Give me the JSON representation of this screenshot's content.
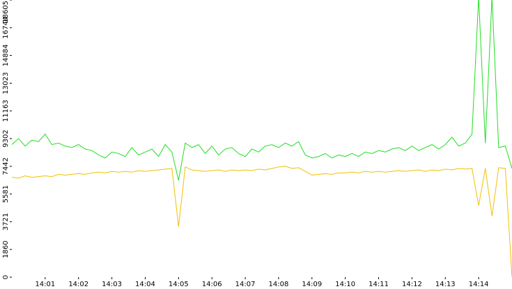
{
  "chart_data": {
    "type": "line",
    "x": [
      0,
      0.2,
      0.4,
      0.6,
      0.8,
      1,
      1.2,
      1.4,
      1.6,
      1.8,
      2,
      2.2,
      2.4,
      2.6,
      2.8,
      3,
      3.2,
      3.4,
      3.6,
      3.8,
      4,
      4.2,
      4.4,
      4.6,
      4.8,
      5,
      5.2,
      5.4,
      5.6,
      5.8,
      6,
      6.2,
      6.4,
      6.6,
      6.8,
      7,
      7.2,
      7.4,
      7.6,
      7.8,
      8,
      8.2,
      8.4,
      8.6,
      8.8,
      9,
      9.2,
      9.4,
      9.6,
      9.8,
      10,
      10.2,
      10.4,
      10.6,
      10.8,
      11,
      11.2,
      11.4,
      11.6,
      11.8,
      12,
      12.2,
      12.4,
      12.6,
      12.8,
      13,
      13.2,
      13.4,
      13.6,
      13.8,
      14,
      14.2,
      14.4,
      14.6,
      14.8,
      15
    ],
    "series": [
      {
        "color": "#22dd22",
        "values": [
          8900,
          9300,
          8800,
          9200,
          9100,
          9600,
          8900,
          9000,
          8800,
          8700,
          8900,
          8600,
          8500,
          8200,
          8000,
          8400,
          8300,
          8100,
          8700,
          8200,
          8400,
          8600,
          8100,
          8900,
          8400,
          6500,
          9000,
          8700,
          8900,
          8300,
          8800,
          8200,
          8600,
          8700,
          8300,
          8100,
          8600,
          8400,
          8800,
          8900,
          8700,
          9000,
          8800,
          9100,
          8200,
          8000,
          8100,
          8300,
          8000,
          8200,
          8100,
          8300,
          8100,
          8400,
          8300,
          8500,
          8400,
          8600,
          8700,
          8500,
          8800,
          8500,
          8700,
          8900,
          8600,
          8900,
          9400,
          8800,
          9000,
          9600,
          18800,
          9000,
          18800,
          8700,
          8800,
          7300
        ]
      },
      {
        "color": "#f0c000",
        "values": [
          6700,
          6650,
          6800,
          6700,
          6750,
          6800,
          6750,
          6900,
          6850,
          6900,
          6950,
          6900,
          7000,
          7050,
          7000,
          7100,
          7050,
          7100,
          7050,
          7150,
          7100,
          7150,
          7200,
          7250,
          7300,
          3400,
          7400,
          7200,
          7150,
          7100,
          7150,
          7200,
          7100,
          7200,
          7150,
          7200,
          7150,
          7250,
          7200,
          7300,
          7400,
          7450,
          7300,
          7350,
          7100,
          6850,
          6900,
          6950,
          6900,
          7000,
          7000,
          7050,
          7000,
          7100,
          7050,
          7100,
          7050,
          7100,
          7150,
          7100,
          7150,
          7200,
          7100,
          7200,
          7150,
          7250,
          7200,
          7300,
          7250,
          7300,
          4800,
          7300,
          4100,
          7350,
          7300,
          0
        ]
      }
    ],
    "xlim": [
      0,
      15
    ],
    "xticks": [
      {
        "value": 1,
        "label": "14:01"
      },
      {
        "value": 2,
        "label": "14:02"
      },
      {
        "value": 3,
        "label": "14:03"
      },
      {
        "value": 4,
        "label": "14:04"
      },
      {
        "value": 5,
        "label": "14:05"
      },
      {
        "value": 6,
        "label": "14:06"
      },
      {
        "value": 7,
        "label": "14:07"
      },
      {
        "value": 8,
        "label": "14:08"
      },
      {
        "value": 9,
        "label": "14:09"
      },
      {
        "value": 10,
        "label": "14:10"
      },
      {
        "value": 11,
        "label": "14:11"
      },
      {
        "value": 12,
        "label": "14:12"
      },
      {
        "value": 13,
        "label": "14:13"
      },
      {
        "value": 14,
        "label": "14:14"
      }
    ],
    "ylim": [
      0,
      18605
    ],
    "yticks": [
      0,
      1860,
      3721,
      5581,
      7442,
      9302,
      11163,
      13023,
      14884,
      16744,
      18605
    ]
  }
}
